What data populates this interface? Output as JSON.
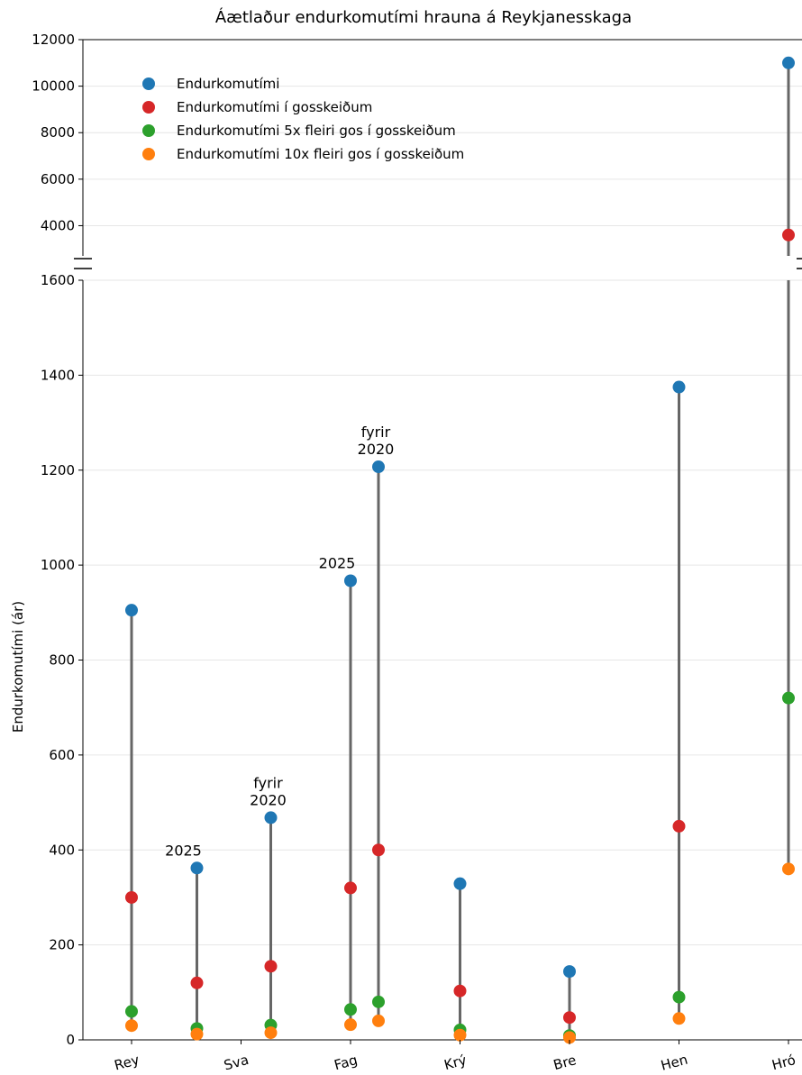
{
  "chart_data": {
    "type": "scatter",
    "title": "Áætlaður endurkomutími hrauna á Reykjanesskaga",
    "ylabel": "Endurkomutími (ár)",
    "xlabel": "",
    "categories": [
      "Rey",
      "Sva",
      "Fag",
      "Krý",
      "Bre",
      "Hen",
      "Hró"
    ],
    "axis_break": true,
    "ylim_lower": [
      0,
      1600
    ],
    "ylim_upper": [
      2700,
      12000
    ],
    "yticks_lower": [
      0,
      200,
      400,
      600,
      800,
      1000,
      1200,
      1400,
      1600
    ],
    "yticks_upper": [
      4000,
      6000,
      8000,
      10000,
      12000
    ],
    "grid": "horizontal",
    "legend_placement": "upper-left",
    "series": [
      {
        "name": "Endurkomutími",
        "color": "#1f77b4"
      },
      {
        "name": "Endurkomutími í gosskeiðum",
        "color": "#d62728"
      },
      {
        "name": "Endurkomutími 5x fleiri gos í gosskeiðum",
        "color": "#2ca02c"
      },
      {
        "name": "Endurkomutími 10x fleiri gos í gosskeiðum",
        "color": "#ff7f0e"
      }
    ],
    "stems": [
      {
        "category": "Rey",
        "offset": 0,
        "values": [
          905,
          300,
          60,
          30
        ]
      },
      {
        "category": "Sva",
        "offset": -0.22,
        "values": [
          362,
          120,
          24,
          12
        ],
        "label": "2025"
      },
      {
        "category": "Sva",
        "offset": 0.22,
        "values": [
          468,
          155,
          31,
          15
        ],
        "label": "fyrir\n2020"
      },
      {
        "category": "Fag",
        "offset": 0,
        "values": [
          967,
          320,
          64,
          32
        ],
        "label": "2025"
      },
      {
        "category": "Fag",
        "offset": 0.44,
        "values": [
          1207,
          400,
          80,
          40
        ],
        "label": "fyrir\n2020"
      },
      {
        "category": "Krý",
        "offset": 0,
        "values": [
          329,
          103,
          21,
          10
        ]
      },
      {
        "category": "Bre",
        "offset": 0,
        "values": [
          144,
          47,
          9,
          5
        ]
      },
      {
        "category": "Hen",
        "offset": 0,
        "values": [
          1375,
          450,
          90,
          45
        ]
      },
      {
        "category": "Hró",
        "offset": 0,
        "values": [
          11000,
          3600,
          720,
          360
        ]
      }
    ]
  }
}
